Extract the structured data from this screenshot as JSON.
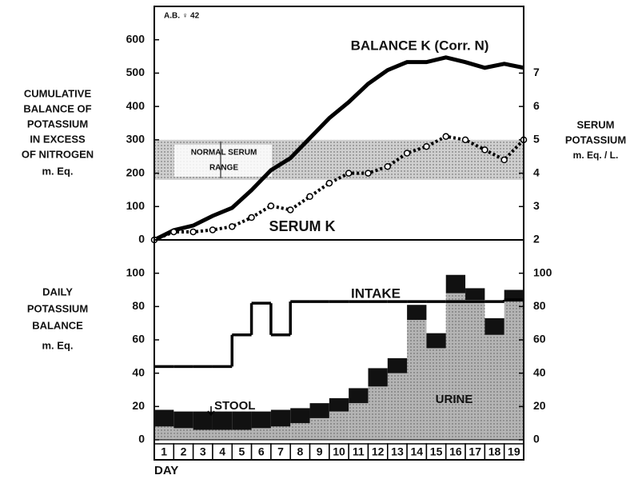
{
  "chart_data": [
    {
      "type": "line",
      "annotation": "A.B. ♀ 42",
      "ylabel": [
        "CUMULATIVE",
        "BALANCE OF",
        "POTASSIUM",
        "IN EXCESS",
        "OF NITROGEN"
      ],
      "yunit": "m. Eq.",
      "y2label": [
        "SERUM",
        "POTASSIUM"
      ],
      "y2unit": "m. Eq. / L.",
      "x": [
        0,
        1,
        2,
        3,
        4,
        5,
        6,
        7,
        8,
        9,
        10,
        11,
        12,
        13,
        14,
        15,
        16,
        17,
        18,
        19
      ],
      "xlim": [
        0,
        19
      ],
      "ylim": [
        0,
        700
      ],
      "yticks": [
        0,
        100,
        200,
        300,
        400,
        500,
        600
      ],
      "y2lim": [
        2,
        9
      ],
      "y2ticks": [
        2,
        3,
        4,
        5,
        6,
        7
      ],
      "band": {
        "label": [
          "NORMAL SERUM",
          "RANGE"
        ],
        "range": [
          3.8,
          5.0
        ],
        "axis": "y2",
        "color": "#cfcfcf"
      },
      "series": [
        {
          "name": "BALANCE K (Corr. N)",
          "color": "#000000",
          "marker": false,
          "values": [
            0,
            29,
            43,
            72,
            96,
            149,
            209,
            245,
            305,
            365,
            413,
            468,
            509,
            533,
            533,
            547,
            533,
            516,
            528,
            516
          ]
        },
        {
          "name": "SERUM K",
          "color": "#000000",
          "marker": true,
          "axis": "y2",
          "values": [
            2.0,
            2.24,
            2.24,
            2.3,
            2.4,
            2.67,
            3.02,
            2.9,
            3.3,
            3.7,
            4.0,
            4.0,
            4.2,
            4.6,
            4.8,
            5.1,
            5.0,
            4.7,
            4.4,
            5.0
          ]
        }
      ]
    },
    {
      "type": "bar",
      "ylabel": [
        "DAILY",
        "POTASSIUM",
        "BALANCE"
      ],
      "yunit": "m. Eq.",
      "xlabel": "DAY",
      "categories": [
        "1",
        "2",
        "3",
        "4",
        "5",
        "6",
        "7",
        "8",
        "9",
        "10",
        "11",
        "12",
        "13",
        "14",
        "15",
        "16",
        "17",
        "18",
        "19"
      ],
      "ylim": [
        0,
        120
      ],
      "yticks": [
        0,
        20,
        40,
        60,
        80,
        100
      ],
      "y2lim": [
        0,
        120
      ],
      "y2ticks": [
        0,
        20,
        40,
        60,
        80,
        100
      ],
      "series": [
        {
          "name": "URINE",
          "color": "#b4b4b4",
          "values": [
            8,
            7,
            6,
            6,
            6,
            7,
            8,
            10,
            13,
            17,
            22,
            32,
            40,
            72,
            55,
            88,
            84,
            63,
            83
          ]
        },
        {
          "name": "STOOL",
          "color": "#111111",
          "values": [
            10,
            10,
            11,
            11,
            11,
            10,
            10,
            9,
            9,
            8,
            9,
            11,
            9,
            9,
            9,
            11,
            7,
            10,
            7
          ]
        },
        {
          "name": "INTAKE",
          "type": "step",
          "color": "#000000",
          "values": [
            44,
            44,
            44,
            44,
            63,
            82,
            63,
            83,
            83,
            83,
            83,
            83,
            83,
            83,
            83,
            83,
            83,
            83,
            84
          ]
        }
      ]
    }
  ]
}
